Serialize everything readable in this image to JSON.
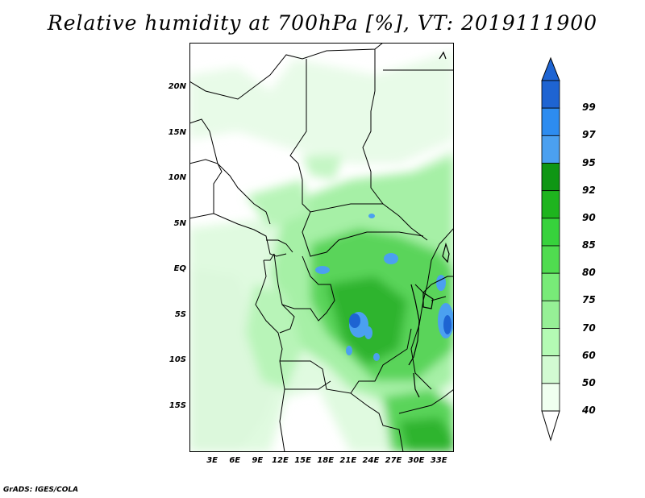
{
  "title": "Relative humidity at 700hPa [%], VT: 2019111900",
  "credit": "GrADS: IGES/COLA",
  "map": {
    "lon_range": [
      0,
      35
    ],
    "lat_range": [
      -20,
      25
    ],
    "lat_ticks": [
      {
        "value": 20,
        "label": "20N"
      },
      {
        "value": 15,
        "label": "15N"
      },
      {
        "value": 10,
        "label": "10N"
      },
      {
        "value": 5,
        "label": "5N"
      },
      {
        "value": 0,
        "label": "EQ"
      },
      {
        "value": -5,
        "label": "5S"
      },
      {
        "value": -10,
        "label": "10S"
      },
      {
        "value": -15,
        "label": "15S"
      }
    ],
    "lon_ticks": [
      {
        "value": 3,
        "label": "3E"
      },
      {
        "value": 6,
        "label": "6E"
      },
      {
        "value": 9,
        "label": "9E"
      },
      {
        "value": 12,
        "label": "12E"
      },
      {
        "value": 15,
        "label": "15E"
      },
      {
        "value": 18,
        "label": "18E"
      },
      {
        "value": 21,
        "label": "21E"
      },
      {
        "value": 24,
        "label": "24E"
      },
      {
        "value": 27,
        "label": "27E"
      },
      {
        "value": 30,
        "label": "30E"
      },
      {
        "value": 33,
        "label": "33E"
      }
    ]
  },
  "colorbar": {
    "labels": [
      "99",
      "97",
      "95",
      "92",
      "90",
      "85",
      "80",
      "75",
      "70",
      "60",
      "50",
      "40"
    ],
    "colors": [
      "#1e64d2",
      "#2d8cf0",
      "#4ba0f0",
      "#0f9614",
      "#1eb41e",
      "#37d23c",
      "#50dc50",
      "#78eb78",
      "#96f096",
      "#b4fab4",
      "#d2fad2",
      "#f0fff0"
    ]
  },
  "legend_levels": {
    "min": 40,
    "max": 99,
    "units": "%"
  }
}
